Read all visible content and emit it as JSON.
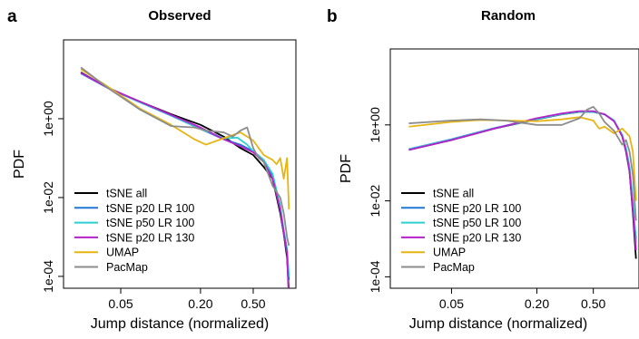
{
  "chart_data": [
    {
      "type": "line",
      "panel_label": "a",
      "title": "Observed",
      "xlabel": "Jump distance (normalized)",
      "ylabel": "PDF",
      "x_scale": "log",
      "y_scale": "log",
      "xlim": [
        0.0185,
        1.05
      ],
      "ylim": [
        5e-05,
        100
      ],
      "x_ticks": [
        0.05,
        0.2,
        0.5
      ],
      "x_tick_labels": [
        "0.05",
        "0.20",
        "0.50"
      ],
      "y_ticks": [
        0.0001,
        0.01,
        1
      ],
      "y_tick_labels": [
        "1e-04",
        "1e-02",
        "1e+00"
      ],
      "legend_position": "bottom-left",
      "grid": false,
      "series": [
        {
          "name": "tSNE all",
          "color": "#000000",
          "x": [
            0.025,
            0.04,
            0.07,
            0.12,
            0.2,
            0.3,
            0.4,
            0.5,
            0.6,
            0.7,
            0.8,
            0.85,
            0.9,
            0.93
          ],
          "y": [
            15,
            6,
            2.7,
            1.3,
            0.7,
            0.35,
            0.18,
            0.12,
            0.06,
            0.03,
            0.004,
            0.0012,
            0.0003,
            4e-05
          ]
        },
        {
          "name": "tSNE p20 LR 100",
          "color": "#1f78d4",
          "x": [
            0.025,
            0.04,
            0.07,
            0.12,
            0.2,
            0.3,
            0.4,
            0.5,
            0.6,
            0.7,
            0.8,
            0.85,
            0.9,
            0.93
          ],
          "y": [
            14,
            6,
            2.6,
            1.2,
            0.55,
            0.3,
            0.22,
            0.15,
            0.09,
            0.035,
            0.005,
            0.0012,
            0.0004,
            8e-05
          ]
        },
        {
          "name": "tSNE p50 LR 100",
          "color": "#2cd0d0",
          "x": [
            0.025,
            0.04,
            0.07,
            0.12,
            0.2,
            0.3,
            0.38,
            0.45,
            0.5,
            0.6,
            0.7,
            0.8,
            0.85,
            0.9,
            0.93
          ],
          "y": [
            14,
            6.2,
            2.6,
            1.2,
            0.55,
            0.32,
            0.33,
            0.22,
            0.15,
            0.09,
            0.04,
            0.006,
            0.0015,
            0.0005,
            0.0001
          ]
        },
        {
          "name": "tSNE p20 LR 130",
          "color": "#b521cc",
          "x": [
            0.025,
            0.04,
            0.07,
            0.12,
            0.2,
            0.3,
            0.4,
            0.5,
            0.6,
            0.7,
            0.8,
            0.85,
            0.9,
            0.93
          ],
          "y": [
            14.5,
            6.1,
            2.7,
            1.25,
            0.6,
            0.3,
            0.2,
            0.14,
            0.08,
            0.03,
            0.005,
            0.0013,
            0.0004,
            2e-05
          ]
        },
        {
          "name": "UMAP",
          "color": "#e8b410",
          "x": [
            0.025,
            0.04,
            0.07,
            0.12,
            0.18,
            0.22,
            0.3,
            0.4,
            0.5,
            0.6,
            0.7,
            0.75,
            0.8,
            0.85,
            0.9,
            0.93
          ],
          "y": [
            18,
            6.5,
            1.8,
            0.7,
            0.3,
            0.22,
            0.32,
            0.45,
            0.28,
            0.12,
            0.09,
            0.07,
            0.1,
            0.03,
            0.1,
            0.005
          ]
        },
        {
          "name": "PacMap",
          "color": "#8c8c8c",
          "x": [
            0.025,
            0.04,
            0.07,
            0.12,
            0.18,
            0.22,
            0.3,
            0.35,
            0.4,
            0.45,
            0.5,
            0.55,
            0.6,
            0.7,
            0.8,
            0.85,
            0.9,
            0.93
          ],
          "y": [
            20,
            6,
            1.7,
            0.65,
            0.6,
            0.5,
            0.45,
            0.35,
            0.5,
            0.6,
            0.18,
            0.1,
            0.08,
            0.02,
            0.01,
            0.004,
            0.001,
            0.0006
          ]
        }
      ]
    },
    {
      "type": "line",
      "panel_label": "b",
      "title": "Random",
      "xlabel": "Jump distance (normalized)",
      "ylabel": "PDF",
      "x_scale": "log",
      "y_scale": "log",
      "xlim": [
        0.0185,
        1.05
      ],
      "ylim": [
        5e-05,
        100
      ],
      "x_ticks": [
        0.05,
        0.2,
        0.5
      ],
      "x_tick_labels": [
        "0.05",
        "0.20",
        "0.50"
      ],
      "y_ticks": [
        0.0001,
        0.01,
        1
      ],
      "y_tick_labels": [
        "1e-04",
        "1e-02",
        "1e+00"
      ],
      "legend_position": "bottom-left",
      "grid": false,
      "series": [
        {
          "name": "tSNE all",
          "color": "#000000",
          "x": [
            0.025,
            0.05,
            0.1,
            0.2,
            0.3,
            0.4,
            0.5,
            0.6,
            0.7,
            0.8,
            0.85,
            0.9,
            0.95,
            1.0
          ],
          "y": [
            0.22,
            0.4,
            0.8,
            1.4,
            1.9,
            2.2,
            2.2,
            1.9,
            1.3,
            0.5,
            0.2,
            0.06,
            0.005,
            0.0003
          ]
        },
        {
          "name": "tSNE p20 LR 100",
          "color": "#1f78d4",
          "x": [
            0.025,
            0.05,
            0.1,
            0.2,
            0.3,
            0.4,
            0.5,
            0.6,
            0.7,
            0.8,
            0.85,
            0.9,
            0.95,
            1.0
          ],
          "y": [
            0.23,
            0.42,
            0.82,
            1.45,
            1.95,
            2.25,
            2.2,
            1.9,
            1.3,
            0.52,
            0.22,
            0.07,
            0.007,
            0.001
          ]
        },
        {
          "name": "tSNE p50 LR 100",
          "color": "#2cd0d0",
          "x": [
            0.025,
            0.05,
            0.1,
            0.2,
            0.3,
            0.4,
            0.5,
            0.6,
            0.7,
            0.8,
            0.85,
            0.9,
            0.95,
            1.0
          ],
          "y": [
            0.23,
            0.41,
            0.81,
            1.42,
            1.92,
            2.2,
            2.2,
            1.9,
            1.3,
            0.55,
            0.25,
            0.08,
            0.01,
            0.0008
          ]
        },
        {
          "name": "tSNE p20 LR 130",
          "color": "#b521cc",
          "x": [
            0.025,
            0.05,
            0.1,
            0.2,
            0.3,
            0.4,
            0.5,
            0.6,
            0.7,
            0.8,
            0.85,
            0.9,
            0.95,
            1.0
          ],
          "y": [
            0.22,
            0.4,
            0.8,
            1.5,
            2.0,
            2.3,
            2.3,
            1.9,
            1.25,
            0.5,
            0.2,
            0.06,
            0.006,
            0.0005
          ]
        },
        {
          "name": "UMAP",
          "color": "#e8b410",
          "x": [
            0.025,
            0.05,
            0.08,
            0.12,
            0.2,
            0.3,
            0.4,
            0.5,
            0.55,
            0.6,
            0.7,
            0.8,
            0.9,
            0.95,
            1.0
          ],
          "y": [
            0.9,
            1.2,
            1.35,
            1.3,
            1.25,
            1.4,
            1.6,
            1.3,
            0.8,
            0.9,
            0.6,
            0.8,
            0.5,
            0.2,
            0.01
          ]
        },
        {
          "name": "PacMap",
          "color": "#8c8c8c",
          "x": [
            0.025,
            0.05,
            0.08,
            0.12,
            0.2,
            0.3,
            0.4,
            0.45,
            0.5,
            0.55,
            0.6,
            0.7,
            0.8,
            0.85,
            0.9,
            0.95,
            1.0
          ],
          "y": [
            1.1,
            1.3,
            1.4,
            1.3,
            1.0,
            1.0,
            1.5,
            2.5,
            3.0,
            2.0,
            1.2,
            0.7,
            0.3,
            0.4,
            0.2,
            0.05,
            0.003
          ]
        }
      ]
    }
  ]
}
